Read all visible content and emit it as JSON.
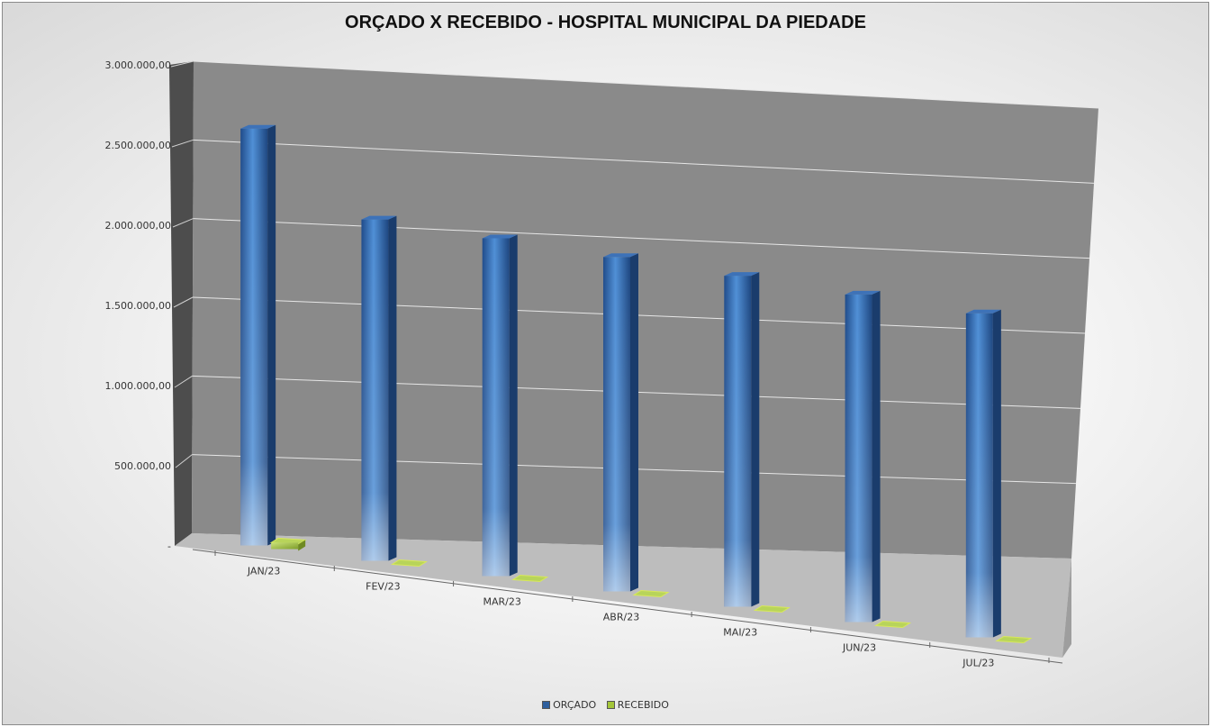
{
  "chart_data": {
    "type": "bar",
    "title": "ORÇADO X RECEBIDO - HOSPITAL MUNICIPAL DA PIEDADE",
    "xlabel": "",
    "ylabel": "",
    "ylim": [
      0,
      3000000
    ],
    "yticks": [
      "-",
      "500.000,00",
      "1.000.000,00",
      "1.500.000,00",
      "2.000.000,00",
      "2.500.000,00",
      "3.000.000,00"
    ],
    "categories": [
      "JAN/23",
      "FEV/23",
      "MAR/23",
      "ABR/23",
      "MAI/23",
      "JUN/23",
      "JUL/23"
    ],
    "series": [
      {
        "name": "ORÇADO",
        "color": "#2e5f9e",
        "values": [
          2600000,
          2150000,
          2150000,
          2150000,
          2150000,
          2150000,
          2150000
        ]
      },
      {
        "name": "RECEBIDO",
        "color": "#a4c639",
        "values": [
          40000,
          0,
          0,
          0,
          0,
          0,
          0
        ]
      }
    ],
    "grid": true,
    "legend_position": "bottom",
    "style": "3d-clustered-column"
  }
}
